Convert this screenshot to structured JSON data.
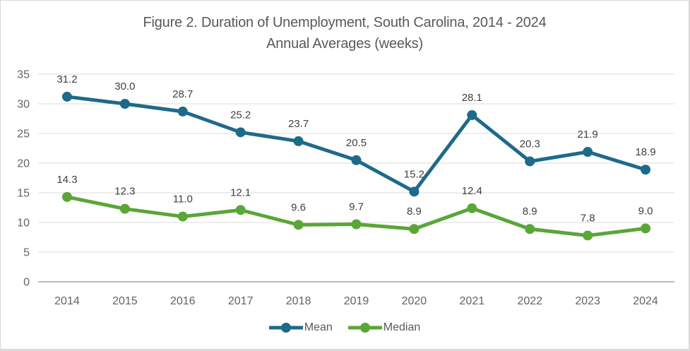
{
  "figure": {
    "title_line1": "Figure 2. Duration of Unemployment, South Carolina, 2014 - 2024",
    "title_line2": "Annual Averages (weeks)"
  },
  "chart_data": {
    "type": "line",
    "title": "Figure 2. Duration of Unemployment, South Carolina, 2014 - 2024 Annual Averages (weeks)",
    "categories": [
      "2014",
      "2015",
      "2016",
      "2017",
      "2018",
      "2019",
      "2020",
      "2021",
      "2022",
      "2023",
      "2024"
    ],
    "series": [
      {
        "name": "Mean",
        "color": "#1e6a8a",
        "values": [
          31.2,
          30.0,
          28.7,
          25.2,
          23.7,
          20.5,
          15.2,
          28.1,
          20.3,
          21.9,
          18.9
        ]
      },
      {
        "name": "Median",
        "color": "#5aa637",
        "values": [
          14.3,
          12.3,
          11.0,
          12.1,
          9.6,
          9.7,
          8.9,
          12.4,
          8.9,
          7.8,
          9.0
        ]
      }
    ],
    "y_ticks": [
      0,
      5,
      10,
      15,
      20,
      25,
      30,
      35
    ],
    "ylim": [
      0,
      35
    ],
    "xlabel": "",
    "ylabel": "",
    "grid": true,
    "data_labels": true,
    "data_label_decimals": 1,
    "legend_position": "bottom",
    "colors": {
      "grid_line": "#e2e2e2",
      "axis_line": "#a6a6a6",
      "title_text": "#595959",
      "tick_text": "#636363",
      "data_label_text": "#404040",
      "legend_text": "#595959",
      "frame_border": "#d9d9d9"
    }
  }
}
